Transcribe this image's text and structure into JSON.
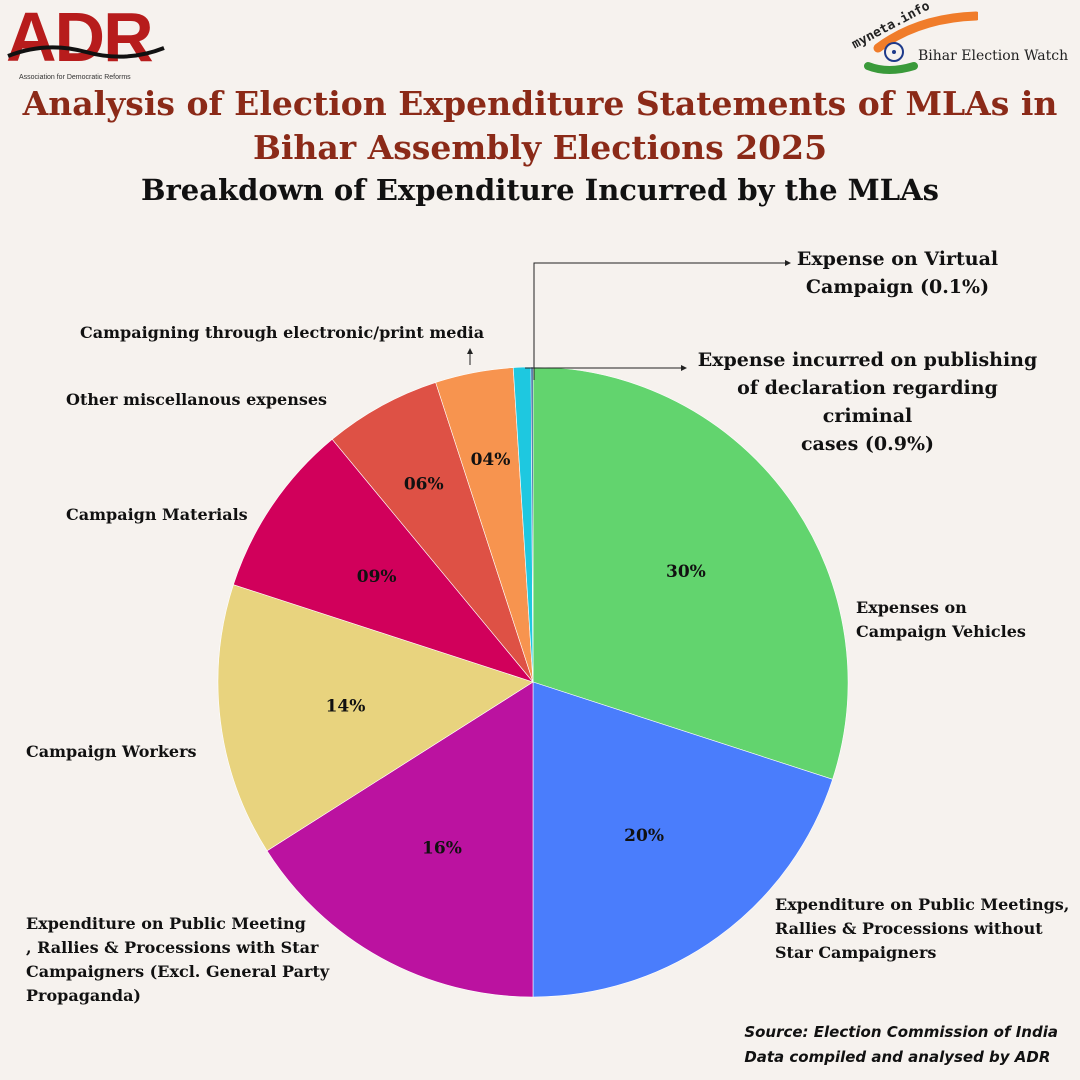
{
  "header": {
    "adr_logo_text": "ADR",
    "adr_logo_subtext": "Association for Democratic Reforms",
    "bew_logo_myneta": "myneta.info",
    "bew_logo_text": "Bihar Election Watch",
    "title_line1": "Analysis of Election Expenditure Statements of MLAs in",
    "title_line2": "Bihar Assembly Elections 2025",
    "subtitle": "Breakdown of Expenditure Incurred by the MLAs"
  },
  "colors": {
    "title": "#8b2a18",
    "background": "#f6f2ee"
  },
  "chart_data": {
    "type": "pie",
    "title": "Breakdown of Expenditure Incurred by the MLAs",
    "slices": [
      {
        "name": "Expenses on Campaign Vehicles",
        "value": 30,
        "label": "30%",
        "color": "#62d46e"
      },
      {
        "name": "Expenditure on Public Meetings, Rallies & Processions without Star Campaigners",
        "value": 20,
        "label": "20%",
        "color": "#4a7dfc"
      },
      {
        "name": "Expenditure on Public Meeting , Rallies & Processions with Star Campaigners (Excl. General Party Propaganda)",
        "value": 16,
        "label": "16%",
        "color": "#bb12a0"
      },
      {
        "name": "Campaign Workers",
        "value": 14,
        "label": "14%",
        "color": "#e8d37e"
      },
      {
        "name": "Campaign Materials",
        "value": 9,
        "label": "09%",
        "color": "#d1005b"
      },
      {
        "name": "Other miscellanous expenses",
        "value": 6,
        "label": "06%",
        "color": "#de5145"
      },
      {
        "name": "Campaigning through electronic/print media",
        "value": 4,
        "label": "04%",
        "color": "#f7944f"
      },
      {
        "name": "Expense incurred on publishing of declaration regarding criminal cases (0.9%)",
        "value": 0.9,
        "label": "",
        "color": "#1ec8e0"
      },
      {
        "name": "Expense on Virtual Campaign (0.1%)",
        "value": 0.1,
        "label": "",
        "color": "#174a8a"
      }
    ]
  },
  "legend": {
    "vehicles_l1": "Expenses on",
    "vehicles_l2": "Campaign Vehicles",
    "without_l1": "Expenditure on Public Meetings,",
    "without_l2": "Rallies & Processions without",
    "without_l3": "Star Campaigners",
    "with_l1": "Expenditure on Public Meeting",
    "with_l2": ", Rallies & Processions with Star",
    "with_l3": "Campaigners (Excl. General Party",
    "with_l4": "Propaganda)",
    "workers": "Campaign Workers",
    "materials": "Campaign Materials",
    "misc": "Other miscellanous expenses",
    "media": "Campaigning through electronic/print media",
    "criminal_l1": "Expense incurred on publishing",
    "criminal_l2": "of declaration regarding criminal",
    "criminal_l3": "cases (0.9%)",
    "virtual_l1": "Expense on Virtual",
    "virtual_l2": "Campaign (0.1%)"
  },
  "footer": {
    "source_line1": "Source: Election Commission of India",
    "source_line2": "Data compiled and analysed by ADR"
  }
}
